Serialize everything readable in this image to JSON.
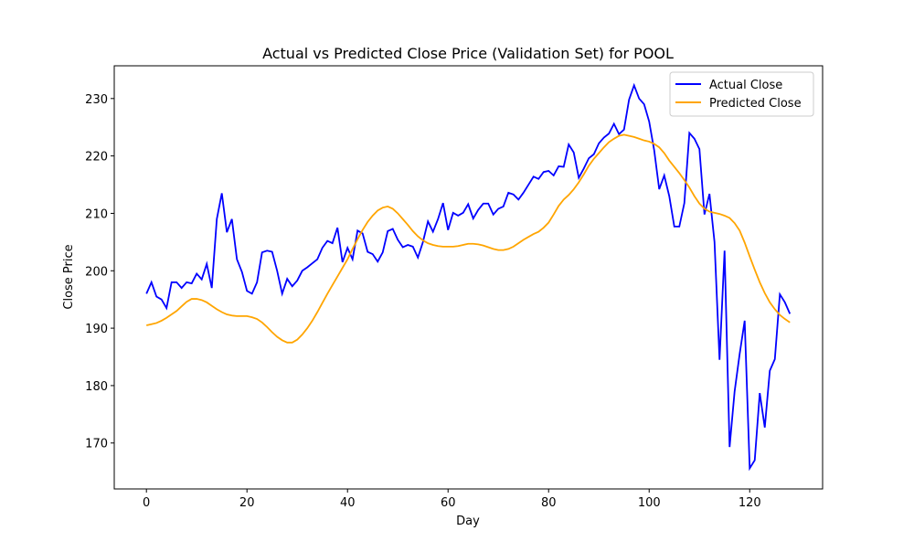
{
  "chart_data": {
    "type": "line",
    "title": "Actual vs Predicted Close Price (Validation Set) for POOL",
    "xlabel": "Day",
    "ylabel": "Close Price",
    "x": [
      0,
      1,
      2,
      3,
      4,
      5,
      6,
      7,
      8,
      9,
      10,
      11,
      12,
      13,
      14,
      15,
      16,
      17,
      18,
      19,
      20,
      21,
      22,
      23,
      24,
      25,
      26,
      27,
      28,
      29,
      30,
      31,
      32,
      33,
      34,
      35,
      36,
      37,
      38,
      39,
      40,
      41,
      42,
      43,
      44,
      45,
      46,
      47,
      48,
      49,
      50,
      51,
      52,
      53,
      54,
      55,
      56,
      57,
      58,
      59,
      60,
      61,
      62,
      63,
      64,
      65,
      66,
      67,
      68,
      69,
      70,
      71,
      72,
      73,
      74,
      75,
      76,
      77,
      78,
      79,
      80,
      81,
      82,
      83,
      84,
      85,
      86,
      87,
      88,
      89,
      90,
      91,
      92,
      93,
      94,
      95,
      96,
      97,
      98,
      99,
      100,
      101,
      102,
      103,
      104,
      105,
      106,
      107,
      108,
      109,
      110,
      111,
      112,
      113,
      114,
      115,
      116,
      117,
      118,
      119,
      120,
      121,
      122,
      123,
      124,
      125,
      126,
      127,
      128
    ],
    "series": [
      {
        "name": "Actual Close",
        "color": "#0000ff",
        "values": [
          196,
          198,
          195.5,
          195,
          193.5,
          198,
          198,
          197,
          198,
          197.8,
          199.5,
          198.5,
          201.2,
          197,
          209,
          213.5,
          206.7,
          209,
          202,
          199.8,
          196.5,
          196,
          198,
          203.2,
          203.5,
          203.3,
          200,
          196,
          198.6,
          197.3,
          198.3,
          200,
          200.6,
          201.3,
          202,
          204,
          205.2,
          204.8,
          207.5,
          201.5,
          204,
          202,
          207,
          206.5,
          203.3,
          202.9,
          201.6,
          203.2,
          206.9,
          207.3,
          205.4,
          204.1,
          204.5,
          204.2,
          202.3,
          205,
          208.6,
          206.8,
          209,
          211.8,
          207.1,
          210.1,
          209.6,
          210.1,
          211.6,
          209.1,
          210.6,
          211.7,
          211.7,
          209.8,
          210.8,
          211.2,
          213.6,
          213.3,
          212.4,
          213.6,
          215,
          216.4,
          216,
          217.2,
          217.4,
          216.6,
          218.2,
          218.1,
          222,
          220.6,
          216.2,
          217.8,
          219.6,
          220.3,
          222.2,
          223.2,
          223.9,
          225.6,
          223.8,
          224.6,
          229.8,
          232.3,
          230,
          229,
          226,
          221,
          214.2,
          216.6,
          213,
          207.7,
          207.7,
          211.8,
          224,
          223,
          221.2,
          209.8,
          213.4,
          205,
          184.5,
          203.5,
          169.3,
          179,
          185.5,
          191.3,
          165.6,
          167,
          178.7,
          172.7,
          182.6,
          184.6,
          195.9,
          194.5,
          192.5
        ]
      },
      {
        "name": "Predicted Close",
        "color": "#ffa500",
        "values": [
          190.5,
          190.7,
          190.9,
          191.3,
          191.8,
          192.4,
          193,
          193.8,
          194.6,
          195.1,
          195.1,
          194.9,
          194.5,
          193.9,
          193.3,
          192.8,
          192.4,
          192.2,
          192.1,
          192.1,
          192.1,
          191.9,
          191.6,
          191,
          190.2,
          189.3,
          188.5,
          187.9,
          187.5,
          187.5,
          188,
          188.9,
          190,
          191.3,
          192.8,
          194.4,
          196,
          197.5,
          199,
          200.5,
          202,
          203.8,
          205.5,
          207.1,
          208.5,
          209.6,
          210.5,
          211,
          211.2,
          210.8,
          210,
          209,
          208,
          206.9,
          206,
          205.3,
          204.8,
          204.5,
          204.3,
          204.2,
          204.2,
          204.2,
          204.3,
          204.5,
          204.7,
          204.7,
          204.6,
          204.4,
          204.1,
          203.8,
          203.6,
          203.6,
          203.8,
          204.2,
          204.8,
          205.4,
          205.9,
          206.4,
          206.8,
          207.5,
          208.4,
          209.8,
          211.3,
          212.4,
          213.2,
          214.2,
          215.4,
          216.8,
          218.3,
          219.5,
          220.5,
          221.5,
          222.4,
          223,
          223.5,
          223.7,
          223.5,
          223.3,
          223,
          222.7,
          222.5,
          222.1,
          221.5,
          220.5,
          219.2,
          218.1,
          217,
          215.8,
          214.5,
          213,
          211.7,
          210.8,
          210.3,
          210.1,
          209.9,
          209.6,
          209.2,
          208.3,
          207,
          204.9,
          202.5,
          200.2,
          198,
          196.1,
          194.5,
          193.3,
          192.3,
          191.6,
          191
        ]
      }
    ],
    "xlim": [
      -6.4,
      134.5
    ],
    "xticks": [
      0,
      20,
      40,
      60,
      80,
      100,
      120
    ],
    "ylim": [
      162,
      235.7
    ],
    "yticks": [
      170,
      180,
      190,
      200,
      210,
      220,
      230
    ],
    "legend": "upper right",
    "grid": false
  }
}
